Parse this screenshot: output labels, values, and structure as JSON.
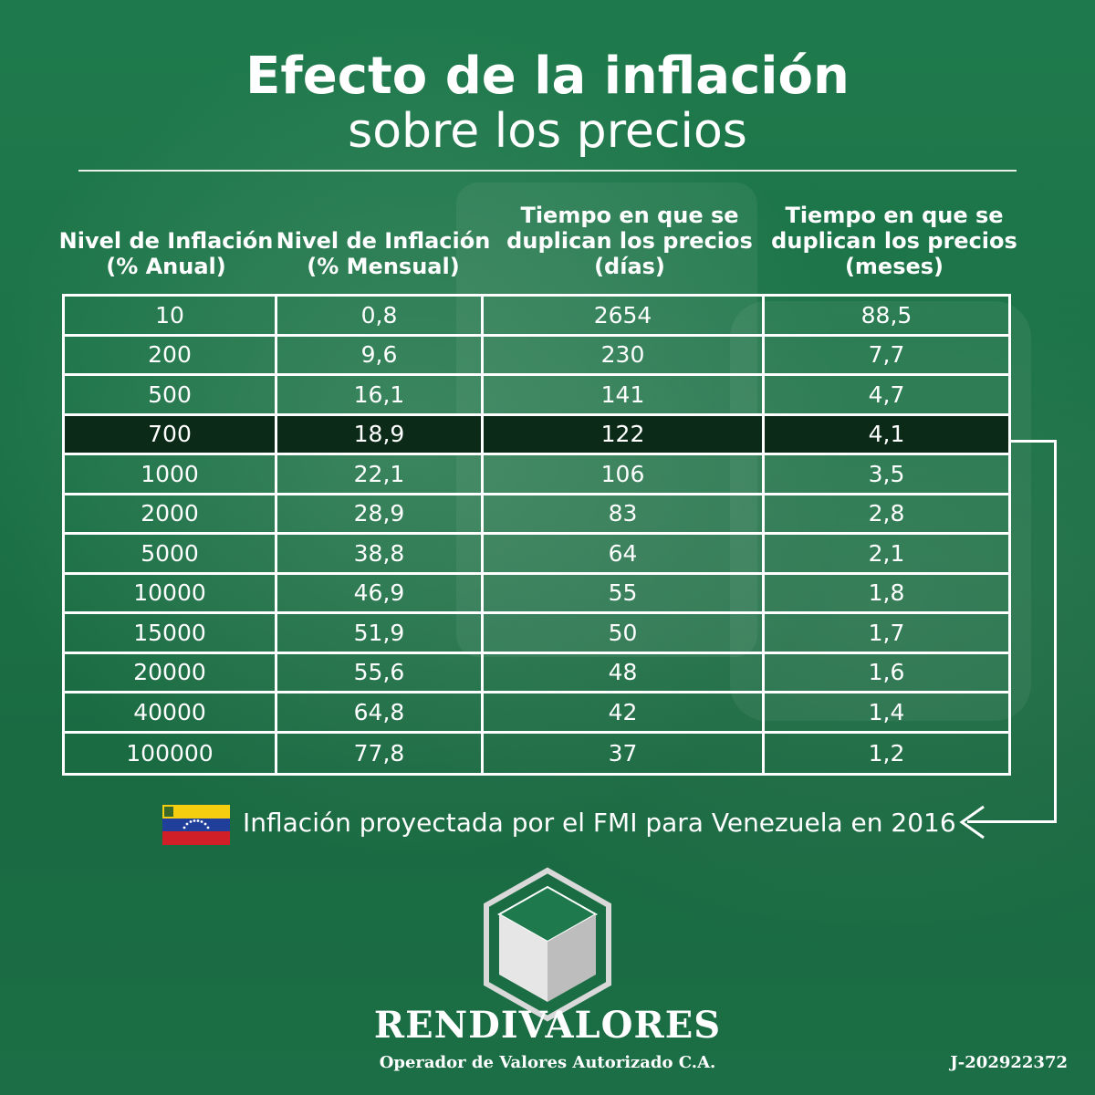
{
  "title": {
    "main": "Efecto  de la inflación",
    "sub": "sobre los precios"
  },
  "headers": {
    "col1": [
      "Nivel de Inflación",
      "(% Anual)"
    ],
    "col2": [
      "Nivel de Inflación",
      "(% Mensual)"
    ],
    "col3": [
      "Tiempo en que se",
      "duplican los precios",
      "(días)"
    ],
    "col4": [
      "Tiempo en que se",
      "duplican los precios",
      "(meses)"
    ]
  },
  "rows": [
    [
      "10",
      "0,8",
      "2654",
      "88,5"
    ],
    [
      "200",
      "9,6",
      "230",
      "7,7"
    ],
    [
      "500",
      "16,1",
      "141",
      "4,7"
    ],
    [
      "700",
      "18,9",
      "122",
      "4,1"
    ],
    [
      "1000",
      "22,1",
      "106",
      "3,5"
    ],
    [
      "2000",
      "28,9",
      "83",
      "2,8"
    ],
    [
      "5000",
      "38,8",
      "64",
      "2,1"
    ],
    [
      "10000",
      "46,9",
      "55",
      "1,8"
    ],
    [
      "15000",
      "51,9",
      "50",
      "1,7"
    ],
    [
      "20000",
      "55,6",
      "48",
      "1,6"
    ],
    [
      "40000",
      "64,8",
      "42",
      "1,4"
    ],
    [
      "100000",
      "77,8",
      "37",
      "1,2"
    ]
  ],
  "highlight_row": 3,
  "note": "Inflación proyectada por el FMI para Venezuela en 2016",
  "flag_icon": "venezuela-flag-icon",
  "brand": {
    "name": "RENDIVALORES",
    "tagline": "Operador de Valores Autorizado C.A.",
    "rif": "J-202922372"
  },
  "colors": {
    "background": "#1e7a4c",
    "highlight": "#0b2b18",
    "text": "#ffffff"
  }
}
